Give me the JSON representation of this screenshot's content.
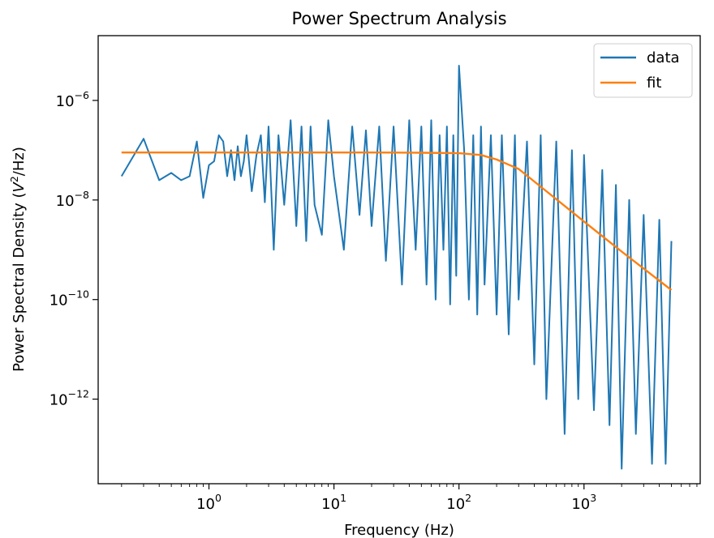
{
  "chart_data": {
    "type": "line",
    "title": "Power Spectrum Analysis",
    "xlabel": "Frequency (Hz)",
    "ylabel": {
      "prefix": "Power Spectral Density (",
      "var": "V",
      "sup": "2",
      "suffix": "/Hz)"
    },
    "xscale": "log",
    "yscale": "log",
    "xlim": [
      0.13,
      8500
    ],
    "ylim": [
      2e-14,
      2e-05
    ],
    "xticks": [
      {
        "value": 1,
        "base": "10",
        "exp": "0"
      },
      {
        "value": 10,
        "base": "10",
        "exp": "1"
      },
      {
        "value": 100,
        "base": "10",
        "exp": "2"
      },
      {
        "value": 1000,
        "base": "10",
        "exp": "3"
      }
    ],
    "yticks": [
      {
        "value": 1e-12,
        "base": "10",
        "exp": "−12"
      },
      {
        "value": 1e-10,
        "base": "10",
        "exp": "−10"
      },
      {
        "value": 1e-08,
        "base": "10",
        "exp": "−8"
      },
      {
        "value": 1e-06,
        "base": "10",
        "exp": "−6"
      }
    ],
    "legend": {
      "placement": "upper right"
    },
    "series": [
      {
        "name": "data",
        "color": "#1f77b4",
        "x": [
          0.2,
          0.3,
          0.4,
          0.5,
          0.6,
          0.7,
          0.8,
          0.9,
          1.0,
          1.1,
          1.2,
          1.3,
          1.4,
          1.5,
          1.6,
          1.7,
          1.8,
          1.9,
          2.0,
          2.2,
          2.4,
          2.6,
          2.8,
          3.0,
          3.3,
          3.6,
          4.0,
          4.5,
          5,
          5.5,
          6,
          6.5,
          7,
          8,
          9,
          10,
          12,
          14,
          16,
          18,
          20,
          23,
          26,
          30,
          35,
          40,
          45,
          50,
          55,
          60,
          65,
          70,
          75,
          80,
          85,
          90,
          95,
          100,
          110,
          120,
          130,
          140,
          150,
          160,
          180,
          200,
          220,
          250,
          280,
          300,
          350,
          400,
          450,
          500,
          600,
          700,
          800,
          900,
          1000,
          1200,
          1400,
          1600,
          1800,
          2000,
          2300,
          2600,
          3000,
          3500,
          4000,
          4500,
          5000
        ],
        "y": [
          3e-08,
          1.7e-07,
          2.5e-08,
          3.5e-08,
          2.5e-08,
          3e-08,
          1.5e-07,
          1.1e-08,
          5e-08,
          6e-08,
          2e-07,
          1.5e-07,
          3e-08,
          1e-07,
          2.5e-08,
          1.2e-07,
          3e-08,
          6e-08,
          2e-07,
          1.5e-08,
          8e-08,
          2e-07,
          9e-09,
          3e-07,
          1e-09,
          2e-07,
          8e-09,
          4e-07,
          3e-09,
          3e-07,
          1.5e-09,
          3e-07,
          8e-09,
          2e-09,
          4e-07,
          3e-08,
          1e-09,
          3e-07,
          5e-09,
          2.5e-07,
          3e-09,
          3e-07,
          6e-10,
          3e-07,
          2e-10,
          4e-07,
          1e-09,
          3e-07,
          2e-10,
          4e-07,
          1e-10,
          2e-07,
          1e-09,
          3e-07,
          8e-11,
          2e-07,
          3e-10,
          5e-06,
          1e-07,
          1e-10,
          2e-07,
          5e-11,
          3e-07,
          2e-10,
          2e-07,
          5e-11,
          2e-07,
          2e-11,
          2e-07,
          1e-10,
          1.5e-07,
          5e-12,
          2e-07,
          1e-12,
          1.5e-07,
          2e-13,
          1e-07,
          1e-12,
          8e-08,
          6e-13,
          4e-08,
          3e-13,
          2e-08,
          4e-14,
          1e-08,
          2e-13,
          5e-09,
          5e-14,
          4e-09,
          5e-14,
          1.5e-09
        ]
      },
      {
        "name": "fit",
        "color": "#ff7f0e",
        "model": {
          "plateau": 9e-08,
          "corner_hz": 200,
          "order": 2
        },
        "x": [
          0.2,
          0.5,
          1,
          2,
          5,
          10,
          20,
          50,
          100,
          150,
          200,
          300,
          500,
          1000,
          2000,
          3000,
          5000
        ],
        "y": [
          9e-08,
          9e-08,
          9e-08,
          9e-08,
          9e-08,
          9e-08,
          9e-08,
          8.9e-08,
          8.7e-08,
          8e-08,
          6.5e-08,
          4.2e-08,
          1.5e-08,
          3.7e-09,
          9.2e-10,
          4.2e-10,
          1.55e-10
        ]
      }
    ]
  }
}
